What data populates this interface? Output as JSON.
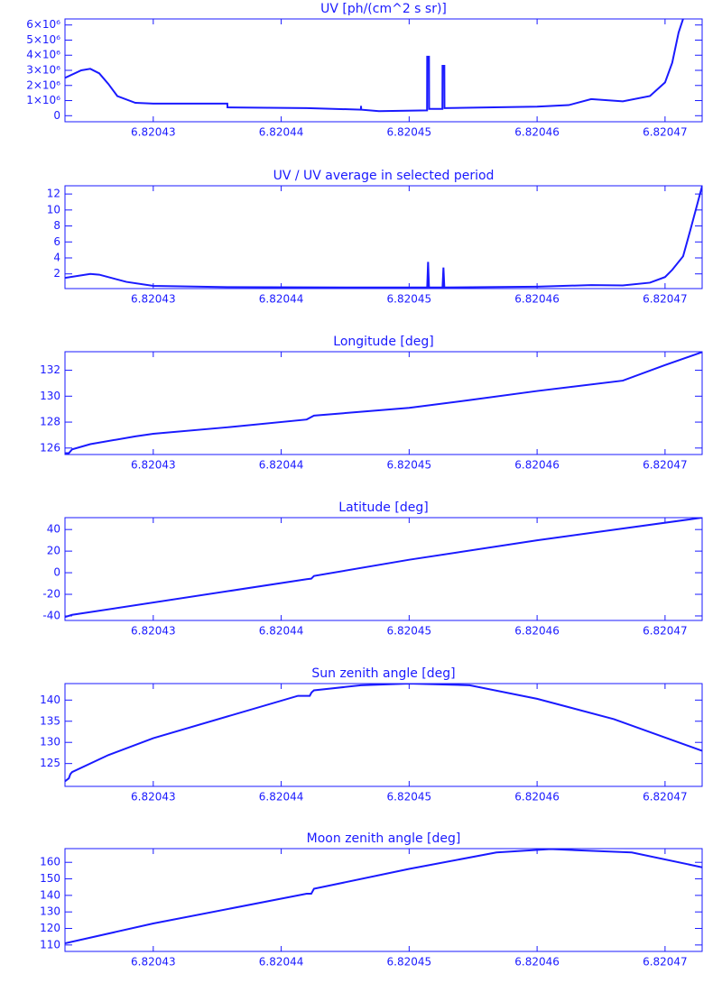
{
  "chart_data": [
    {
      "type": "line",
      "title": "UV [ph/(cm^2 s sr)]",
      "color": "#1a1aff",
      "x": [
        6.8204231,
        6.82042437,
        6.82042508,
        6.82042578,
        6.82042649,
        6.82042719,
        6.8204286,
        6.82043,
        6.82043579,
        6.8204358,
        6.82044199,
        6.82044623,
        6.82044624,
        6.82044625,
        6.82044764,
        6.8204514,
        6.82045141,
        6.82045155,
        6.82045156,
        6.8204526,
        6.82045261,
        6.82045275,
        6.82045276,
        6.82046,
        6.82046247,
        6.82046423,
        6.8204667,
        6.82046882,
        6.82047,
        6.82047056,
        6.82047106,
        6.82047141
      ],
      "values": [
        2500000,
        3000000,
        3100000,
        2800000,
        2100000,
        1300000,
        850000,
        800000,
        800000,
        550000,
        500000,
        400000,
        650000,
        400000,
        300000,
        350000,
        3900000,
        3900000,
        450000,
        450000,
        3300000,
        3300000,
        500000,
        600000,
        700000,
        1100000,
        950000,
        1300000,
        2200000,
        3500000,
        5500000,
        6400000
      ],
      "xlim": [
        6.8204231,
        6.8204729
      ],
      "xticks": [
        6.82043,
        6.82044,
        6.82045,
        6.82046,
        6.82047
      ],
      "ylim": [
        -400000,
        6400000
      ],
      "yticks": [
        0,
        {
          "value": 1000000,
          "label": "1×10⁶"
        },
        {
          "value": 2000000,
          "label": "2×10⁶"
        },
        {
          "value": 3000000,
          "label": "3×10⁶"
        },
        {
          "value": 4000000,
          "label": "4×10⁶"
        },
        {
          "value": 5000000,
          "label": "5×10⁶"
        },
        {
          "value": 6000000,
          "label": "6×10⁶"
        }
      ]
    },
    {
      "type": "line",
      "title": "UV / UV average in selected period",
      "color": "#1a1aff",
      "x": [
        6.8204231,
        6.82042508,
        6.82042578,
        6.8204279,
        6.82043,
        6.82043579,
        6.82044623,
        6.82045141,
        6.82045148,
        6.82045155,
        6.82045261,
        6.82045268,
        6.82045275,
        6.82046,
        6.82046423,
        6.8204667,
        6.82046882,
        6.82047,
        6.82047056,
        6.82047141,
        6.82047198,
        6.8204729
      ],
      "values": [
        1.5,
        2.0,
        1.9,
        1.0,
        0.5,
        0.35,
        0.3,
        0.3,
        3.5,
        0.3,
        0.3,
        2.8,
        0.3,
        0.4,
        0.6,
        0.55,
        0.9,
        1.6,
        2.5,
        4.2,
        7.5,
        13
      ],
      "xlim": [
        6.8204231,
        6.8204729
      ],
      "xticks": [
        6.82043,
        6.82044,
        6.82045,
        6.82046,
        6.82047
      ],
      "ylim": [
        0.16,
        13.03
      ],
      "yticks": [
        2,
        4,
        6,
        8,
        10,
        12
      ]
    },
    {
      "type": "line",
      "title": "Longitude [deg]",
      "color": "#1a1aff",
      "x": [
        6.8204231,
        6.8204234,
        6.82042366,
        6.82042508,
        6.8204286,
        6.82043,
        6.82043579,
        6.82044199,
        6.82044256,
        6.82045,
        6.82045473,
        6.82046,
        6.8204667,
        6.82047,
        6.8204729
      ],
      "values": [
        125.6,
        125.6,
        125.9,
        126.3,
        126.9,
        127.1,
        127.6,
        128.2,
        128.5,
        129.1,
        129.7,
        130.4,
        131.2,
        132.4,
        133.4
      ],
      "xlim": [
        6.8204231,
        6.8204729
      ],
      "xticks": [
        6.82043,
        6.82044,
        6.82045,
        6.82046,
        6.82047
      ],
      "ylim": [
        125.5,
        133.43
      ],
      "yticks": [
        126,
        128,
        130,
        132
      ]
    },
    {
      "type": "line",
      "title": "Latitude [deg]",
      "color": "#1a1aff",
      "x": [
        6.8204231,
        6.82042366,
        6.82044199,
        6.82044235,
        6.82044256,
        6.82045,
        6.82046,
        6.8204729
      ],
      "values": [
        -41,
        -39,
        -6,
        -5.5,
        -3,
        12,
        30,
        51
      ],
      "xlim": [
        6.8204231,
        6.8204729
      ],
      "xticks": [
        6.82043,
        6.82044,
        6.82045,
        6.82046,
        6.82047
      ],
      "ylim": [
        -44.2,
        51
      ],
      "yticks": [
        -40,
        -20,
        0,
        20,
        40
      ]
    },
    {
      "type": "line",
      "title": "Sun zenith angle [deg]",
      "color": "#1a1aff",
      "x": [
        6.8204231,
        6.8204234,
        6.82042352,
        6.82042366,
        6.82042649,
        6.82043,
        6.82044131,
        6.82044223,
        6.82044237,
        6.82044256,
        6.82044623,
        6.82045,
        6.82045473,
        6.82046,
        6.820466,
        6.8204729
      ],
      "values": [
        120.8,
        121.5,
        122.5,
        123,
        127,
        131,
        141,
        141,
        141.8,
        142.3,
        143.5,
        143.9,
        143.5,
        140.3,
        135.5,
        128
      ],
      "xlim": [
        6.8204231,
        6.8204729
      ],
      "xticks": [
        6.82043,
        6.82044,
        6.82045,
        6.82046,
        6.82047
      ],
      "ylim": [
        119.6,
        143.9
      ],
      "yticks": [
        125,
        130,
        135,
        140
      ]
    },
    {
      "type": "line",
      "title": "Moon zenith angle [deg]",
      "color": "#1a1aff",
      "x": [
        6.8204231,
        6.82043,
        6.82044199,
        6.82044235,
        6.82044256,
        6.82045,
        6.82045682,
        6.82046105,
        6.8204674,
        6.8204729
      ],
      "values": [
        111,
        123,
        141,
        141,
        144,
        156,
        166,
        168,
        166,
        157
      ],
      "xlim": [
        6.8204231,
        6.8204729
      ],
      "xticks": [
        6.82043,
        6.82044,
        6.82045,
        6.82046,
        6.82047
      ],
      "ylim": [
        106.1,
        168.3
      ],
      "yticks": [
        110,
        120,
        130,
        140,
        150,
        160
      ]
    }
  ]
}
